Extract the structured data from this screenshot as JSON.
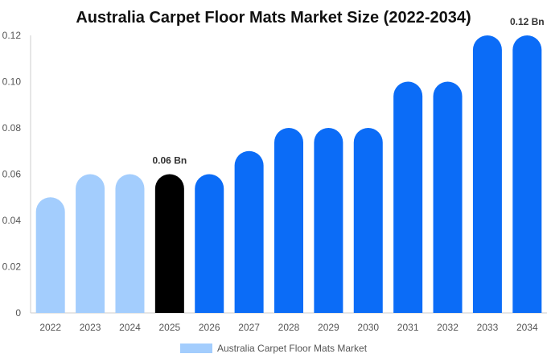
{
  "chart_data": {
    "type": "bar",
    "title": "Australia Carpet Floor Mats Market Size (2022-2034)",
    "categories": [
      "2022",
      "2023",
      "2024",
      "2025",
      "2026",
      "2027",
      "2028",
      "2029",
      "2030",
      "2031",
      "2032",
      "2033",
      "2034"
    ],
    "series": [
      {
        "name": "Australia Carpet Floor Mats Market",
        "values": [
          0.05,
          0.06,
          0.06,
          0.06,
          0.06,
          0.07,
          0.08,
          0.08,
          0.08,
          0.1,
          0.1,
          0.12,
          0.12
        ]
      }
    ],
    "data_labels": [
      {
        "category": "2025",
        "text": "0.06 Bn"
      },
      {
        "category": "2034",
        "text": "0.12 Bn"
      }
    ],
    "y_ticks": [
      "0",
      "0.02",
      "0.04",
      "0.06",
      "0.08",
      "0.10",
      "0.12"
    ],
    "ylim": [
      0,
      0.12
    ],
    "grid": false,
    "legend_position": "bottom-center",
    "colors": {
      "history": "#a3cdfd",
      "current": "#000000",
      "forecast": "#0b6cf7",
      "legend_swatch": "#a3cdfd",
      "axis": "#cccccc"
    }
  }
}
